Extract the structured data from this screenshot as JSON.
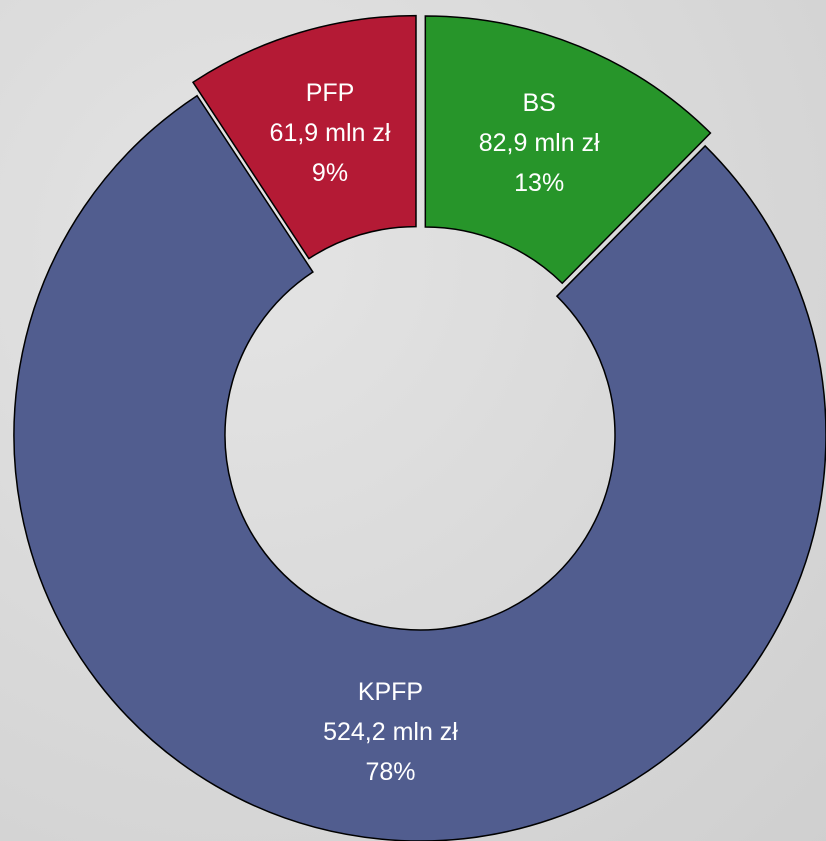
{
  "chart_data": {
    "type": "donut",
    "categories": [
      "BS",
      "KPFP",
      "PFP"
    ],
    "values": [
      82.9,
      524.2,
      61.9
    ],
    "value_labels": [
      "82,9 mln zł",
      "524,2 mln zł",
      "61,9 mln zł"
    ],
    "percent_labels": [
      "13%",
      "78%",
      "9%"
    ],
    "colors": [
      "#27952a",
      "#515d8f",
      "#b41a35"
    ],
    "exploded": [
      true,
      false,
      true
    ]
  }
}
